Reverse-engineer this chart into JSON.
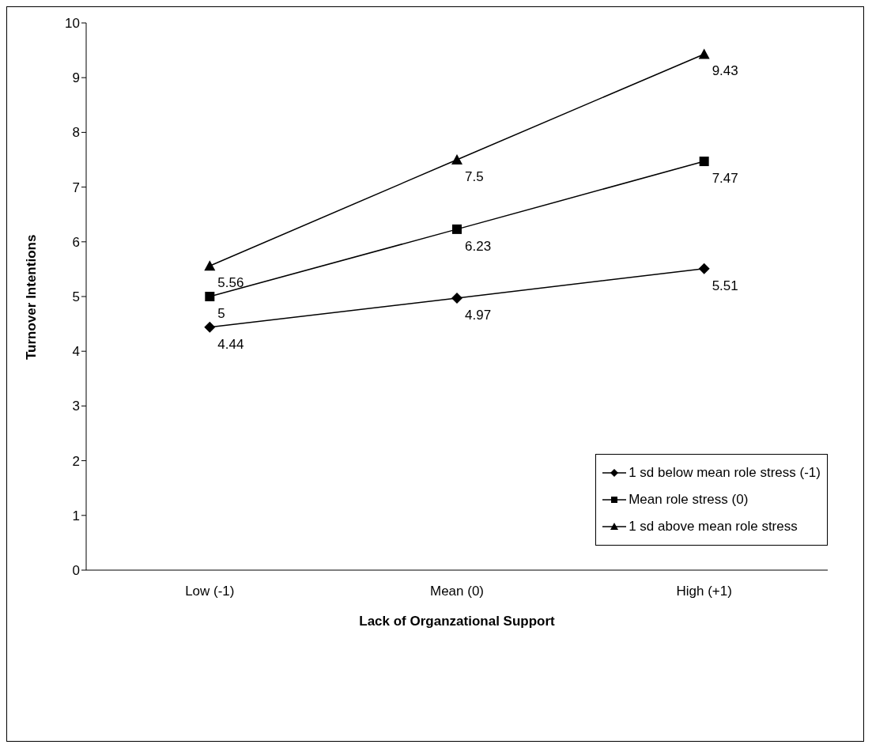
{
  "chart_data": {
    "type": "line",
    "xlabel": "Lack of Organzational Support",
    "ylabel": "Turnover Intentions",
    "categories": [
      "Low (-1)",
      "Mean (0)",
      "High (+1)"
    ],
    "series": [
      {
        "name": "1 sd below mean role stress (-1)",
        "color": "#000000",
        "marker": "diamond",
        "values": [
          4.44,
          4.97,
          5.51
        ]
      },
      {
        "name": "Mean role stress (0)",
        "color": "#000000",
        "marker": "square",
        "values": [
          5,
          6.23,
          7.47
        ]
      },
      {
        "name": "1 sd above mean role stress",
        "color": "#000000",
        "marker": "triangle",
        "values": [
          5.56,
          7.5,
          9.43
        ]
      }
    ],
    "ylim": [
      0,
      10
    ],
    "yticks": [
      0,
      1,
      2,
      3,
      4,
      5,
      6,
      7,
      8,
      9,
      10
    ],
    "grid": false,
    "legend": "bottom right",
    "data_labels": true,
    "line_style": "solid"
  }
}
